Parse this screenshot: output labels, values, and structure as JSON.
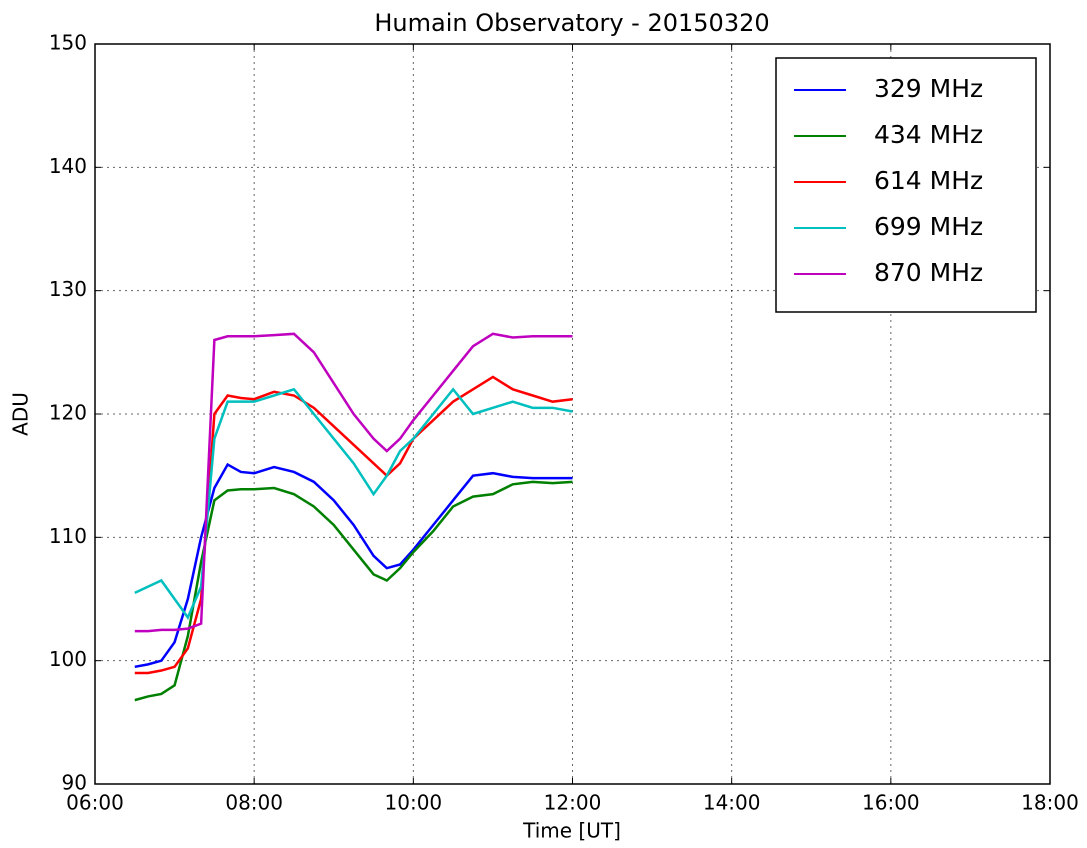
{
  "chart_data": {
    "type": "line",
    "title": "Humain Observatory - 20150320",
    "x_label": "Time [UT]",
    "y_label": "ADU",
    "x": [
      "06:30",
      "06:40",
      "06:50",
      "07:00",
      "07:10",
      "07:20",
      "07:30",
      "07:40",
      "07:50",
      "08:00",
      "08:15",
      "08:30",
      "08:45",
      "09:00",
      "09:15",
      "09:30",
      "09:40",
      "09:50",
      "10:00",
      "10:15",
      "10:30",
      "10:45",
      "11:00",
      "11:15",
      "11:30",
      "11:45",
      "12:00"
    ],
    "series": [
      {
        "name": "329 MHz",
        "color": "#0000ff",
        "values": [
          99.5,
          99.7,
          100,
          101.5,
          105,
          110,
          114,
          115.9,
          115.3,
          115.2,
          115.7,
          115.3,
          114.5,
          113,
          111,
          108.5,
          107.5,
          107.8,
          109,
          111,
          113,
          115,
          115.2,
          114.9,
          114.8,
          114.8,
          114.8
        ]
      },
      {
        "name": "434 MHz",
        "color": "#008000",
        "values": [
          96.8,
          97.1,
          97.3,
          98,
          102,
          108,
          113,
          113.8,
          113.9,
          113.9,
          114,
          113.5,
          112.5,
          111,
          109,
          107,
          106.5,
          107.5,
          108.8,
          110.5,
          112.5,
          113.3,
          113.5,
          114.3,
          114.5,
          114.4,
          114.5
        ]
      },
      {
        "name": "614 MHz",
        "color": "#ff0000",
        "values": [
          99,
          99,
          99.2,
          99.5,
          101,
          105,
          120,
          121.5,
          121.3,
          121.2,
          121.8,
          121.5,
          120.5,
          119,
          117.5,
          116,
          115,
          116,
          118,
          119.5,
          121,
          122,
          123,
          122,
          121.5,
          121,
          121.2
        ]
      },
      {
        "name": "699 MHz",
        "color": "#00bfbf",
        "values": [
          105.5,
          106,
          106.5,
          105,
          103.5,
          106,
          118,
          121,
          121,
          121,
          121.5,
          122,
          120,
          118,
          116,
          113.5,
          115,
          117,
          118,
          120,
          122,
          120,
          120.5,
          121,
          120.5,
          120.5,
          120.2
        ]
      },
      {
        "name": "870 MHz",
        "color": "#bf00bf",
        "values": [
          102.4,
          102.4,
          102.5,
          102.5,
          102.6,
          103,
          126,
          126.3,
          126.3,
          126.3,
          126.4,
          126.5,
          125,
          122.5,
          120,
          118,
          117,
          118,
          119.5,
          121.5,
          123.5,
          125.5,
          126.5,
          126.2,
          126.3,
          126.3,
          126.3
        ]
      }
    ],
    "xlim": [
      "06:00",
      "18:00"
    ],
    "xticks": [
      "06:00",
      "08:00",
      "10:00",
      "12:00",
      "14:00",
      "16:00",
      "18:00"
    ],
    "ylim": [
      90,
      150
    ],
    "yticks": [
      90,
      100,
      110,
      120,
      130,
      140,
      150
    ],
    "grid": true,
    "legend": "upper right"
  }
}
